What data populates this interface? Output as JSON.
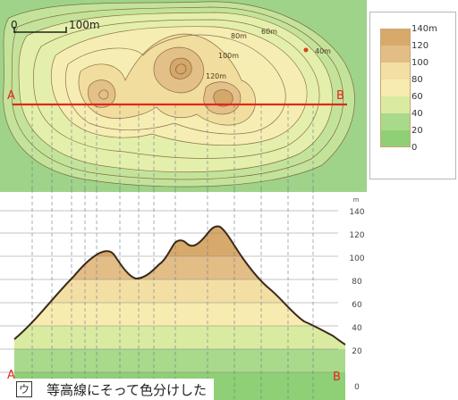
{
  "map": {
    "scale_start": "0",
    "scale_end": "100m",
    "point_a": "A",
    "point_b": "B",
    "contour_labels": [
      "80m",
      "60m",
      "100m",
      "120m"
    ],
    "spot_height": "40m"
  },
  "legend": {
    "items": [
      {
        "label": "140m",
        "color": "#d7a96b"
      },
      {
        "label": "120",
        "color": "#e2bd86"
      },
      {
        "label": "100",
        "color": "#f3dfa3"
      },
      {
        "label": "80",
        "color": "#f7ebb0"
      },
      {
        "label": "60",
        "color": "#d9eba1"
      },
      {
        "label": "40",
        "color": "#a9d98a"
      },
      {
        "label": "20",
        "color": "#8fcf75"
      },
      {
        "label": "0",
        "color": ""
      }
    ]
  },
  "profile": {
    "unit": "m",
    "ticks": [
      "140",
      "120",
      "100",
      "80",
      "60",
      "40",
      "20",
      "0"
    ],
    "point_a": "A",
    "point_b": "B"
  },
  "caption": {
    "marker": "ウ",
    "text": "等高線にそって色分けした"
  }
}
